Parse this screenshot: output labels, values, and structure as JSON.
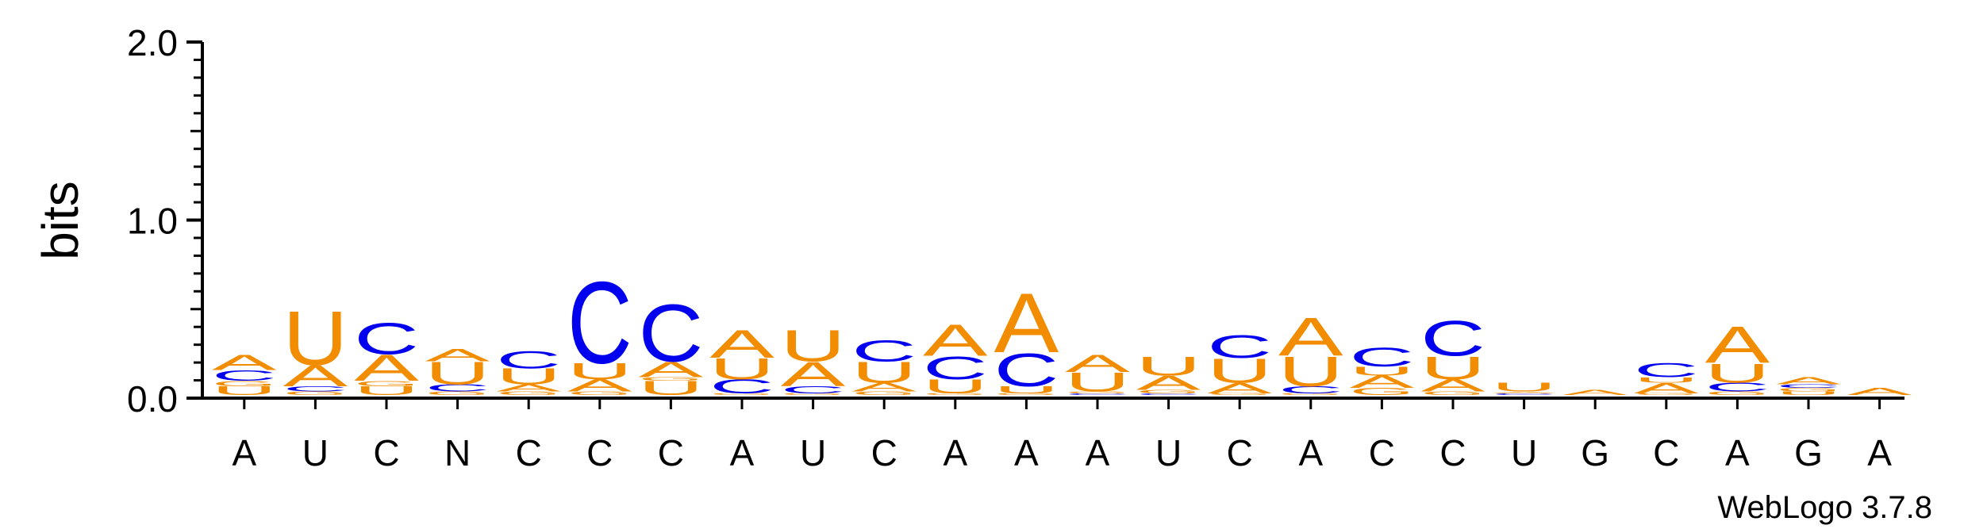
{
  "chart_data": {
    "type": "sequence-logo",
    "title": "",
    "ylabel": "bits",
    "xlabel": "",
    "ylim": [
      0,
      2.0
    ],
    "yticks": [
      "0.0",
      "1.0",
      "2.0"
    ],
    "colors": {
      "A": "#f28c00",
      "U": "#f28c00",
      "G": "#f28c00",
      "C": "#0000ee",
      "N": "#f28c00"
    },
    "positions": [
      {
        "label": "A",
        "stack": [
          [
            "U",
            0.05
          ],
          [
            "G",
            0.03
          ],
          [
            "C",
            0.06
          ],
          [
            "A",
            0.09
          ]
        ]
      },
      {
        "label": "U",
        "stack": [
          [
            "G",
            0.02
          ],
          [
            "C",
            0.03
          ],
          [
            "A",
            0.12
          ],
          [
            "U",
            0.31
          ]
        ]
      },
      {
        "label": "C",
        "stack": [
          [
            "U",
            0.05
          ],
          [
            "G",
            0.03
          ],
          [
            "A",
            0.15
          ],
          [
            "C",
            0.18
          ]
        ]
      },
      {
        "label": "N",
        "stack": [
          [
            "G",
            0.02
          ],
          [
            "C",
            0.04
          ],
          [
            "U",
            0.13
          ],
          [
            "A",
            0.07
          ]
        ]
      },
      {
        "label": "C",
        "stack": [
          [
            "G",
            0.02
          ],
          [
            "A",
            0.04
          ],
          [
            "U",
            0.09
          ],
          [
            "C",
            0.1
          ]
        ]
      },
      {
        "label": "C",
        "stack": [
          [
            "G",
            0.02
          ],
          [
            "A",
            0.07
          ],
          [
            "U",
            0.09
          ],
          [
            "C",
            0.47
          ]
        ]
      },
      {
        "label": "C",
        "stack": [
          [
            "U",
            0.08
          ],
          [
            "G",
            0.02
          ],
          [
            "A",
            0.09
          ],
          [
            "C",
            0.33
          ]
        ]
      },
      {
        "label": "A",
        "stack": [
          [
            "G",
            0.01
          ],
          [
            "C",
            0.08
          ],
          [
            "U",
            0.12
          ],
          [
            "A",
            0.16
          ]
        ]
      },
      {
        "label": "U",
        "stack": [
          [
            "G",
            0.01
          ],
          [
            "C",
            0.04
          ],
          [
            "A",
            0.14
          ],
          [
            "U",
            0.18
          ]
        ]
      },
      {
        "label": "C",
        "stack": [
          [
            "G",
            0.02
          ],
          [
            "A",
            0.05
          ],
          [
            "U",
            0.12
          ],
          [
            "C",
            0.12
          ]
        ]
      },
      {
        "label": "A",
        "stack": [
          [
            "G",
            0.01
          ],
          [
            "U",
            0.08
          ],
          [
            "C",
            0.13
          ],
          [
            "A",
            0.18
          ]
        ]
      },
      {
        "label": "A",
        "stack": [
          [
            "G",
            0.01
          ],
          [
            "U",
            0.04
          ],
          [
            "C",
            0.19
          ],
          [
            "A",
            0.34
          ]
        ]
      },
      {
        "label": "A",
        "stack": [
          [
            "C",
            0.01
          ],
          [
            "G",
            0.01
          ],
          [
            "U",
            0.11
          ],
          [
            "A",
            0.1
          ]
        ]
      },
      {
        "label": "U",
        "stack": [
          [
            "C",
            0.01
          ],
          [
            "G",
            0.02
          ],
          [
            "A",
            0.08
          ],
          [
            "U",
            0.11
          ]
        ]
      },
      {
        "label": "C",
        "stack": [
          [
            "G",
            0.01
          ],
          [
            "A",
            0.06
          ],
          [
            "U",
            0.14
          ],
          [
            "C",
            0.13
          ]
        ]
      },
      {
        "label": "A",
        "stack": [
          [
            "G",
            0.01
          ],
          [
            "C",
            0.04
          ],
          [
            "U",
            0.17
          ],
          [
            "A",
            0.22
          ]
        ]
      },
      {
        "label": "C",
        "stack": [
          [
            "G",
            0.04
          ],
          [
            "A",
            0.07
          ],
          [
            "U",
            0.05
          ],
          [
            "C",
            0.11
          ]
        ]
      },
      {
        "label": "C",
        "stack": [
          [
            "G",
            0.02
          ],
          [
            "A",
            0.07
          ],
          [
            "U",
            0.13
          ],
          [
            "C",
            0.2
          ]
        ]
      },
      {
        "label": "U",
        "stack": [
          [
            "C",
            0.01
          ],
          [
            "A",
            0.01
          ],
          [
            "U",
            0.05
          ]
        ]
      },
      {
        "label": "G",
        "stack": [
          [
            "A",
            0.03
          ]
        ]
      },
      {
        "label": "C",
        "stack": [
          [
            "G",
            0.01
          ],
          [
            "A",
            0.06
          ],
          [
            "U",
            0.03
          ],
          [
            "C",
            0.08
          ]
        ]
      },
      {
        "label": "A",
        "stack": [
          [
            "G",
            0.02
          ],
          [
            "C",
            0.05
          ],
          [
            "U",
            0.11
          ],
          [
            "A",
            0.21
          ]
        ]
      },
      {
        "label": "G",
        "stack": [
          [
            "U",
            0.02
          ],
          [
            "G",
            0.02
          ],
          [
            "C",
            0.02
          ],
          [
            "A",
            0.04
          ]
        ]
      },
      {
        "label": "A",
        "stack": [
          [
            "A",
            0.04
          ]
        ]
      }
    ],
    "credit": "WebLogo 3.7.8"
  }
}
